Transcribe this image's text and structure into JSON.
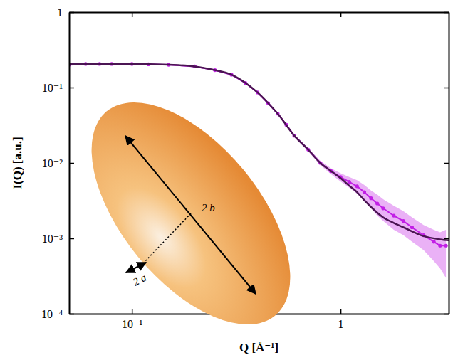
{
  "chart_data": {
    "type": "line",
    "x_label": "Q [Å⁻¹]",
    "y_label": "I(Q) [a.u.]",
    "log": true,
    "grid": false,
    "xlim": [
      0.05,
      3.3
    ],
    "ylim": [
      0.0001,
      1
    ],
    "xticks": [
      {
        "value": 0.1,
        "label": "10⁻¹"
      },
      1
    ],
    "yticks": [
      {
        "value": 0.0001,
        "label": "10⁻⁴"
      },
      {
        "value": 0.001,
        "label": "10⁻³"
      },
      {
        "value": 0.01,
        "label": "10⁻²"
      },
      {
        "value": 0.1,
        "label": "10⁻¹"
      },
      1
    ],
    "annotations": [
      {
        "text": "2 b"
      },
      {
        "text": "2 a"
      }
    ],
    "series": [
      {
        "type": "line",
        "marker": "circle",
        "line_style": "solid",
        "color": "#c21fe6",
        "x": [
          0.05,
          0.06,
          0.07,
          0.08,
          0.1,
          0.12,
          0.15,
          0.2,
          0.25,
          0.3,
          0.35,
          0.4,
          0.45,
          0.5,
          0.55,
          0.6,
          0.7,
          0.8,
          0.9,
          1.0,
          1.1,
          1.2,
          1.3,
          1.4,
          1.5,
          1.6,
          1.8,
          2.0,
          2.2,
          2.5,
          2.8,
          3.0,
          3.2
        ],
        "values": [
          0.2,
          0.205,
          0.205,
          0.205,
          0.205,
          0.203,
          0.2,
          0.19,
          0.17,
          0.148,
          0.115,
          0.086,
          0.062,
          0.045,
          0.032,
          0.023,
          0.015,
          0.01,
          0.0078,
          0.0065,
          0.0056,
          0.0049,
          0.0041,
          0.0034,
          0.0029,
          0.0025,
          0.002,
          0.0017,
          0.0014,
          0.0011,
          0.0009,
          0.0008,
          0.0008
        ],
        "errors": [
          0.006,
          0.004,
          0.004,
          0.004,
          0.004,
          0.004,
          0.004,
          0.004,
          0.004,
          0.003,
          0.003,
          0.002,
          0.002,
          0.0015,
          0.0012,
          0.001,
          0.0008,
          0.0007,
          0.0007,
          0.0008,
          0.0009,
          0.001,
          0.001,
          0.0009,
          0.0009,
          0.0008,
          0.0007,
          0.0006,
          0.0005,
          0.0004,
          0.0004,
          0.0004,
          0.0005
        ]
      },
      {
        "type": "line",
        "line_style": "solid",
        "color": "#4b1553",
        "x": [
          0.05,
          0.1,
          0.15,
          0.2,
          0.25,
          0.3,
          0.35,
          0.4,
          0.45,
          0.5,
          0.6,
          0.7,
          0.8,
          0.9,
          1.0,
          1.1,
          1.2,
          1.3,
          1.4,
          1.6,
          1.8,
          2.0,
          2.5,
          3.0,
          3.3
        ],
        "values": [
          0.205,
          0.205,
          0.2,
          0.19,
          0.17,
          0.148,
          0.115,
          0.086,
          0.062,
          0.045,
          0.023,
          0.015,
          0.01,
          0.0078,
          0.0063,
          0.005,
          0.0041,
          0.0032,
          0.0026,
          0.0019,
          0.0016,
          0.0014,
          0.00107,
          0.00097,
          0.00094
        ]
      }
    ]
  }
}
